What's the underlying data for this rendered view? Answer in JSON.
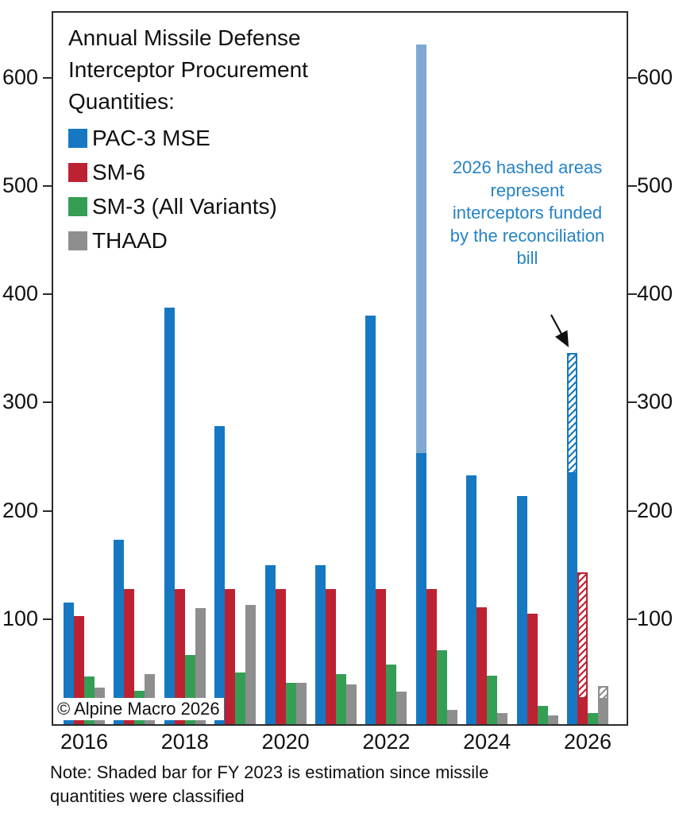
{
  "copyright": "© Alpine Macro 2026",
  "note": "Note: Shaded bar for FY 2023 is estimation since missile quantities were classified",
  "annotation": {
    "text": "2026 hashed areas represent interceptors funded by the reconciliation bill",
    "color": "#2583c5"
  },
  "chart_data": {
    "type": "bar",
    "title": "Annual Missile Defense Interceptor Procurement Quantities:",
    "categories": [
      2016,
      2017,
      2018,
      2019,
      2020,
      2021,
      2022,
      2023,
      2024,
      2025,
      2026
    ],
    "xtick_labels": [
      "2016",
      "2018",
      "2020",
      "2022",
      "2024",
      "2026"
    ],
    "xtick_category_indexes": [
      0,
      2,
      4,
      6,
      8,
      10
    ],
    "yticks": [
      100,
      200,
      300,
      400,
      500,
      600
    ],
    "ylim": [
      0,
      660
    ],
    "grid": false,
    "legend_position": "top-left",
    "series": [
      {
        "name": "PAC-3 MSE",
        "color": "#1678c2",
        "values": [
          112,
          170,
          385,
          275,
          147,
          147,
          377,
          250,
          230,
          211,
          233
        ],
        "overlays": [
          {
            "year": 2023,
            "total": 628,
            "style": "shaded",
            "color": "#7fa9d0"
          },
          {
            "year": 2026,
            "total": 343,
            "style": "hashed"
          }
        ]
      },
      {
        "name": "SM-6",
        "color": "#bc2231",
        "values": [
          100,
          125,
          125,
          125,
          125,
          125,
          125,
          125,
          108,
          102,
          25
        ],
        "overlays": [
          {
            "year": 2026,
            "total": 140,
            "style": "hashed"
          }
        ]
      },
      {
        "name": "SM-3 (All Variants)",
        "color": "#349e55",
        "values": [
          44,
          31,
          64,
          48,
          38,
          46,
          55,
          68,
          45,
          17,
          10
        ],
        "overlays": []
      },
      {
        "name": "THAAD",
        "color": "#8e8e8e",
        "values": [
          34,
          46,
          107,
          110,
          38,
          37,
          30,
          13,
          10,
          8,
          24
        ],
        "overlays": [
          {
            "year": 2026,
            "total": 35,
            "style": "hashed"
          }
        ]
      }
    ]
  }
}
